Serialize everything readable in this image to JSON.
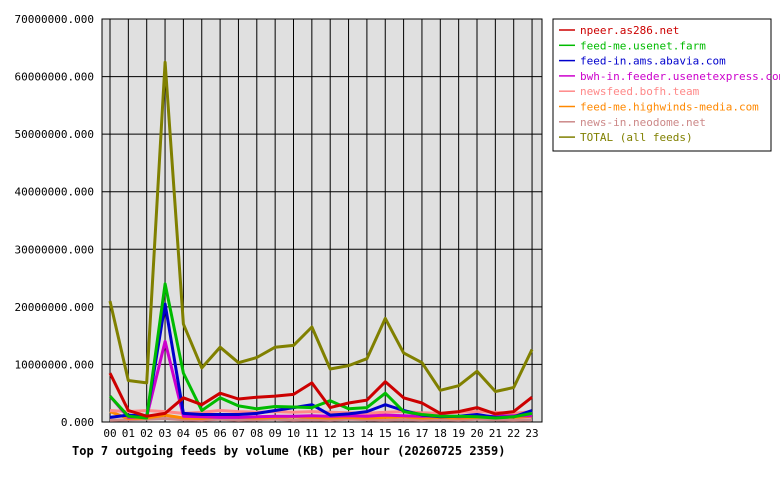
{
  "chart_data": {
    "type": "line",
    "title": "Top 7 outgoing feeds by volume (KB) per hour (20260725 2359)",
    "xlabel": "",
    "ylabel": "",
    "categories": [
      "00",
      "01",
      "02",
      "03",
      "04",
      "05",
      "06",
      "07",
      "08",
      "09",
      "10",
      "11",
      "12",
      "13",
      "14",
      "15",
      "16",
      "17",
      "18",
      "19",
      "20",
      "21",
      "22",
      "23"
    ],
    "ylim": [
      0,
      70000000
    ],
    "yticks": [
      "0.000",
      "10000000.000",
      "20000000.000",
      "30000000.000",
      "40000000.000",
      "50000000.000",
      "60000000.000",
      "70000000.000"
    ],
    "ytick_values": [
      0,
      10000000,
      20000000,
      30000000,
      40000000,
      50000000,
      60000000,
      70000000
    ],
    "grid": true,
    "legend_position": "right",
    "plot_background": "#e0e0e0",
    "series": [
      {
        "name": "npeer.as286.net",
        "color": "#cc0000",
        "values": [
          8500000,
          2000000,
          1000000,
          1500000,
          4200000,
          3000000,
          5000000,
          4000000,
          4300000,
          4500000,
          4800000,
          6800000,
          2500000,
          3300000,
          3800000,
          7000000,
          4200000,
          3300000,
          1500000,
          1800000,
          2500000,
          1400000,
          1800000,
          4300000
        ]
      },
      {
        "name": "feed-me.usenet.farm",
        "color": "#00bb00",
        "values": [
          4500000,
          1000000,
          700000,
          24000000,
          8500000,
          2000000,
          4200000,
          2800000,
          2300000,
          2700000,
          2600000,
          2500000,
          3700000,
          2300000,
          2500000,
          5000000,
          1800000,
          1300000,
          1000000,
          1000000,
          900000,
          700000,
          900000,
          1500000
        ]
      },
      {
        "name": "feed-in.ams.abavia.com",
        "color": "#0000cc",
        "values": [
          800000,
          1200000,
          1000000,
          20500000,
          1500000,
          1300000,
          1300000,
          1300000,
          1500000,
          2000000,
          2500000,
          3000000,
          1200000,
          1400000,
          1800000,
          3000000,
          2000000,
          1200000,
          900000,
          1000000,
          1300000,
          800000,
          900000,
          2000000
        ]
      },
      {
        "name": "bwh-in.feeder.usenetexpress.com",
        "color": "#cc00cc",
        "values": [
          4500000,
          800000,
          900000,
          14000000,
          1000000,
          900000,
          800000,
          800000,
          900000,
          1000000,
          1000000,
          1100000,
          1000000,
          1100000,
          1000000,
          1200000,
          1100000,
          1000000,
          1100000,
          900000,
          1000000,
          1000000,
          1100000,
          1100000
        ]
      },
      {
        "name": "newsfeed.bofh.team",
        "color": "#ff8888",
        "values": [
          2000000,
          1800000,
          2000000,
          1800000,
          1500000,
          1700000,
          2000000,
          1800000,
          1700000,
          1800000,
          1700000,
          1800000,
          1700000,
          1600000,
          1500000,
          1700000,
          1800000,
          1600000,
          1500000,
          1700000,
          1800000,
          1700000,
          1500000,
          1800000
        ]
      },
      {
        "name": "feed-me.highwinds-media.com",
        "color": "#ff8800",
        "values": [
          1800000,
          600000,
          700000,
          1200000,
          700000,
          600000,
          900000,
          800000,
          700000,
          800000,
          900000,
          800000,
          700000,
          800000,
          700000,
          800000,
          900000,
          700000,
          800000,
          700000,
          800000,
          900000,
          800000,
          1000000
        ]
      },
      {
        "name": "news-in.neodome.net",
        "color": "#cc8888",
        "values": [
          300000,
          400000,
          500000,
          600000,
          400000,
          300000,
          500000,
          300000,
          400000,
          500000,
          300000,
          400000,
          300000,
          500000,
          400000,
          300000,
          400000,
          300000,
          400000,
          300000,
          500000,
          400000,
          300000,
          400000
        ]
      },
      {
        "name": "TOTAL (all feeds)",
        "color": "#808000",
        "values": [
          21000000,
          7200000,
          6800000,
          62500000,
          17000000,
          9400000,
          13000000,
          10300000,
          11200000,
          13000000,
          13300000,
          16500000,
          9200000,
          9800000,
          11000000,
          18000000,
          12000000,
          10300000,
          5500000,
          6300000,
          8800000,
          5300000,
          6000000,
          12600000
        ]
      }
    ]
  }
}
